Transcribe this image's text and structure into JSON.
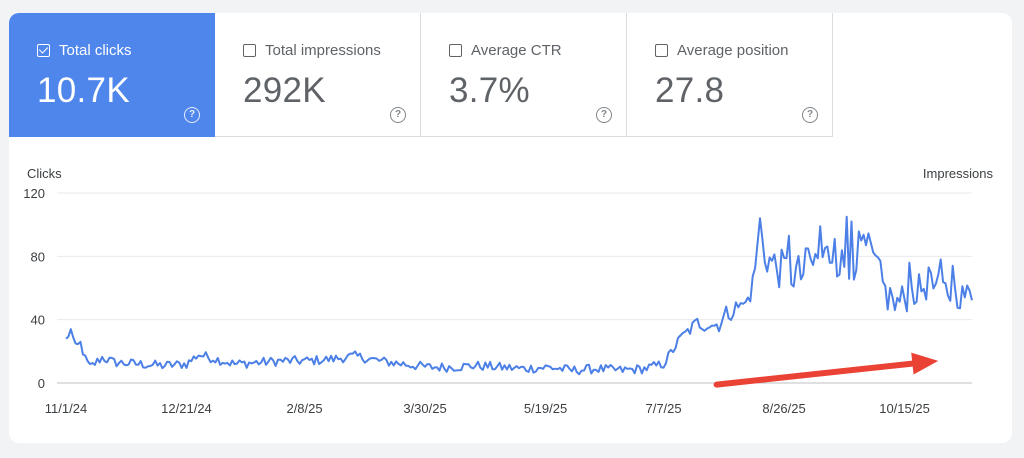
{
  "metrics": [
    {
      "label": "Total clicks",
      "value": "10.7K",
      "active": true
    },
    {
      "label": "Total impressions",
      "value": "292K",
      "active": false
    },
    {
      "label": "Average CTR",
      "value": "3.7%",
      "active": false
    },
    {
      "label": "Average position",
      "value": "27.8",
      "active": false
    }
  ],
  "help_glyph": "?",
  "colors": {
    "accent": "#4f86ec",
    "line": "#4c80e6",
    "arrow": "#ea4335"
  },
  "chart_data": {
    "type": "line",
    "ylabel_left": "Clicks",
    "ylabel_right": "Impressions",
    "ylim": [
      0,
      120
    ],
    "yticks": [
      0,
      40,
      80,
      120
    ],
    "x_tick_labels": [
      "11/1/24",
      "12/21/24",
      "2/8/25",
      "3/30/25",
      "5/19/25",
      "7/7/25",
      "8/26/25",
      "10/15/25"
    ],
    "x_tick_day_index": [
      0,
      50,
      99,
      149,
      199,
      248,
      298,
      348
    ],
    "day_count": 376,
    "grid": true,
    "series": [
      {
        "name": "Clicks",
        "anchors_day_value": [
          [
            0,
            27
          ],
          [
            2,
            34
          ],
          [
            4,
            22
          ],
          [
            6,
            25
          ],
          [
            8,
            15
          ],
          [
            10,
            10
          ],
          [
            15,
            16
          ],
          [
            20,
            13
          ],
          [
            30,
            12
          ],
          [
            40,
            11
          ],
          [
            50,
            12
          ],
          [
            55,
            18
          ],
          [
            60,
            16
          ],
          [
            70,
            12
          ],
          [
            80,
            13
          ],
          [
            90,
            14
          ],
          [
            100,
            14
          ],
          [
            110,
            15
          ],
          [
            120,
            17
          ],
          [
            130,
            14
          ],
          [
            140,
            12
          ],
          [
            150,
            10
          ],
          [
            160,
            10
          ],
          [
            170,
            11
          ],
          [
            180,
            10
          ],
          [
            190,
            9
          ],
          [
            200,
            10
          ],
          [
            210,
            8
          ],
          [
            220,
            9
          ],
          [
            230,
            8
          ],
          [
            240,
            9
          ],
          [
            248,
            12
          ],
          [
            255,
            28
          ],
          [
            262,
            38
          ],
          [
            270,
            36
          ],
          [
            275,
            45
          ],
          [
            282,
            50
          ],
          [
            285,
            62
          ],
          [
            288,
            97
          ],
          [
            290,
            80
          ],
          [
            296,
            72
          ],
          [
            305,
            68
          ],
          [
            312,
            78
          ],
          [
            318,
            82
          ],
          [
            325,
            70
          ],
          [
            330,
            88
          ],
          [
            334,
            82
          ],
          [
            338,
            64
          ],
          [
            343,
            48
          ],
          [
            350,
            56
          ],
          [
            358,
            62
          ],
          [
            365,
            58
          ],
          [
            370,
            55
          ],
          [
            376,
            56
          ]
        ],
        "spikes_day_value": [
          [
            2,
            34
          ],
          [
            255,
            30
          ],
          [
            270,
            37
          ],
          [
            281,
            50
          ],
          [
            283,
            54
          ],
          [
            288,
            104
          ],
          [
            300,
            93
          ],
          [
            307,
            85
          ],
          [
            313,
            99
          ],
          [
            319,
            91
          ],
          [
            324,
            105
          ],
          [
            326,
            102
          ],
          [
            330,
            90
          ],
          [
            338,
            77
          ],
          [
            342,
            60
          ],
          [
            350,
            76
          ],
          [
            358,
            73
          ],
          [
            363,
            78
          ],
          [
            368,
            74
          ]
        ],
        "noise_amplitude": [
          [
            0,
            3
          ],
          [
            248,
            3
          ],
          [
            280,
            7
          ],
          [
            300,
            14
          ],
          [
            340,
            11
          ],
          [
            376,
            8
          ]
        ]
      }
    ],
    "annotation": {
      "type": "arrow",
      "from_day_value": [
        270,
        -1
      ],
      "to_day_value": [
        362,
        14
      ],
      "description": "upward trend arrow"
    }
  }
}
